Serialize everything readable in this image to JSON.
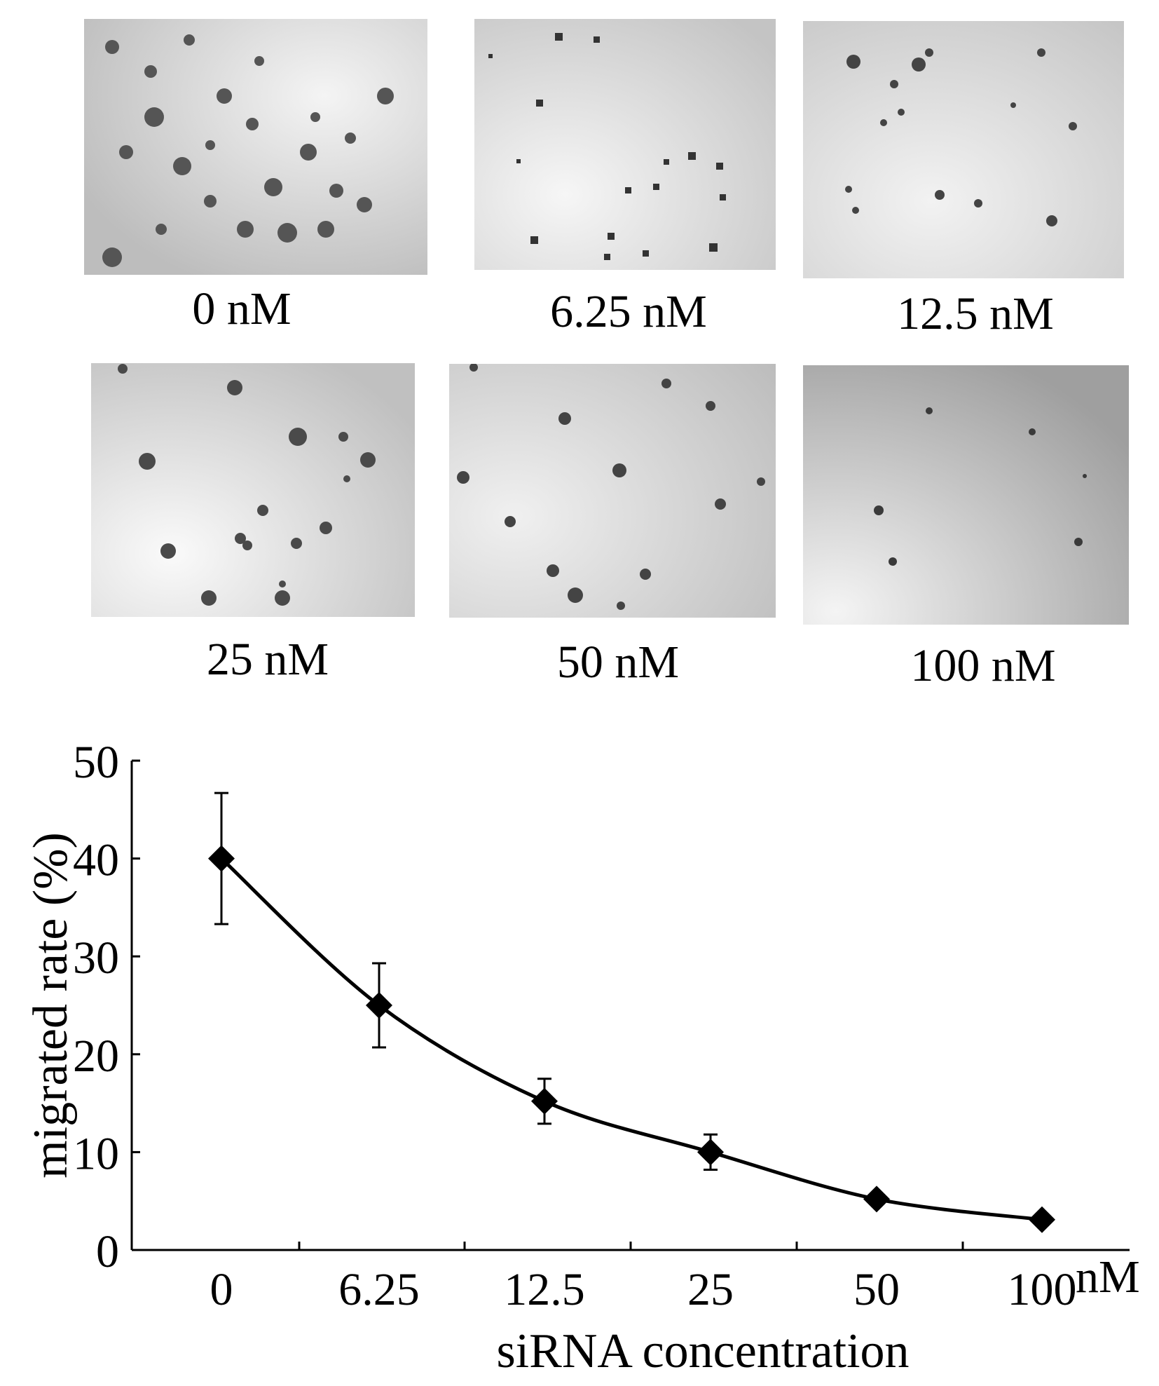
{
  "panels": [
    {
      "label": "0 nM"
    },
    {
      "label": "6.25 nM"
    },
    {
      "label": "12.5 nM"
    },
    {
      "label": "25 nM"
    },
    {
      "label": "50 nM"
    },
    {
      "label": "100 nM"
    }
  ],
  "chart_data": {
    "type": "line",
    "categories": [
      "0",
      "6.25",
      "12.5",
      "25",
      "50",
      "100"
    ],
    "x_unit_label": "nM",
    "xlabel": "siRNA concentration",
    "ylabel": "migrated rate (%)",
    "ylim": [
      0,
      50
    ],
    "yticks": [
      0,
      10,
      20,
      30,
      40,
      50
    ],
    "grid": false,
    "marker": "diamond",
    "color": "#000000",
    "series": [
      {
        "values": [
          40,
          25,
          15.2,
          10,
          5.2,
          3.1
        ],
        "error": [
          6.7,
          4.3,
          2.3,
          1.8,
          0,
          0
        ]
      }
    ]
  }
}
